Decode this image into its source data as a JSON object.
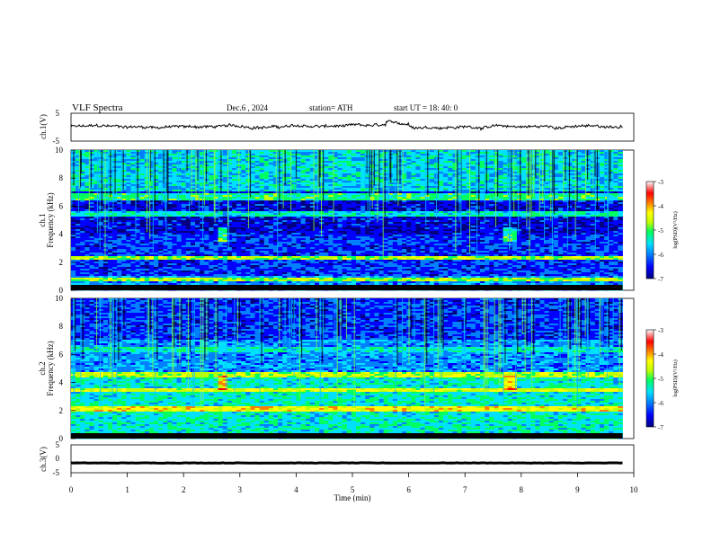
{
  "header": {
    "title": "VLF  Spectra",
    "date": "Dec.6  , 2024",
    "station": "station= ATH",
    "start": "start  UT  =   18: 40: 0"
  },
  "chart_data": [
    {
      "type": "line",
      "name": "ch1-waveform",
      "ylabel": "ch.1(V)",
      "xlim": [
        0,
        10
      ],
      "ylim": [
        -5,
        5
      ],
      "yticks": [
        "5",
        "-5"
      ],
      "trace_mean": 0.2,
      "trace_end_min": 9.8
    },
    {
      "type": "heatmap",
      "name": "ch1-spectrogram",
      "ylabel": "ch.1\nFrequency  (kHz)",
      "xlim": [
        0,
        10
      ],
      "ylim": [
        0,
        10
      ],
      "yticks": [
        "0",
        "2",
        "4",
        "6",
        "8",
        "10"
      ],
      "data_end_min": 9.8
    },
    {
      "type": "heatmap",
      "name": "ch2-spectrogram",
      "ylabel": "ch.2\nFrequency  (kHz)",
      "xlim": [
        0,
        10
      ],
      "ylim": [
        0,
        10
      ],
      "yticks": [
        "0",
        "2",
        "4",
        "6",
        "8",
        "10"
      ],
      "data_end_min": 9.8
    },
    {
      "type": "line",
      "name": "ch3-waveform",
      "ylabel": "ch.3(V)",
      "xlim": [
        0,
        10
      ],
      "ylim": [
        -5,
        5
      ],
      "yticks": [
        "5",
        "0",
        "-5"
      ],
      "trace_mean": -1.5,
      "trace_end_min": 9.8
    }
  ],
  "xaxis": {
    "label": "Time  (min)",
    "ticks": [
      "0",
      "1",
      "2",
      "3",
      "4",
      "5",
      "6",
      "7",
      "8",
      "9",
      "10"
    ]
  },
  "colorbar": {
    "label": "log(PSD)(V²/Hz)",
    "range": [
      -7,
      -3
    ],
    "ticks": [
      "-3",
      "-4",
      "-5",
      "-6",
      "-7"
    ],
    "colors": [
      "#000080",
      "#0000ff",
      "#0080ff",
      "#00e0ff",
      "#00ff60",
      "#c0ff00",
      "#ffff00",
      "#ff8000",
      "#ff0000",
      "#ffffff"
    ]
  }
}
